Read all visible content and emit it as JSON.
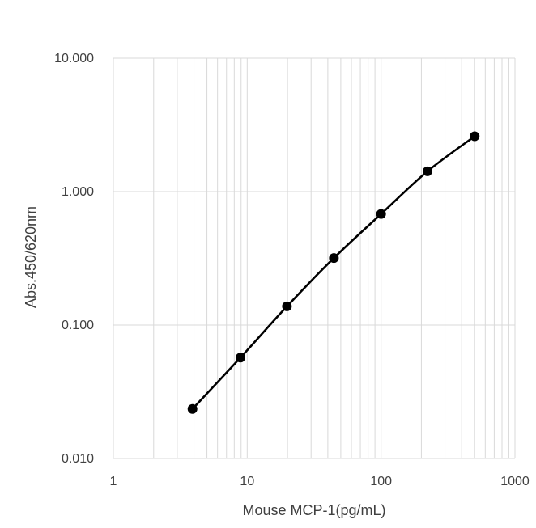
{
  "chart_data": {
    "type": "line",
    "title": "",
    "xlabel": "Mouse MCP-1(pg/mL)",
    "ylabel": "Abs.450/620nm",
    "x_scale": "log",
    "y_scale": "log",
    "xlim": [
      1,
      1000
    ],
    "ylim": [
      0.01,
      10
    ],
    "x_ticks": [
      1,
      10,
      100,
      1000
    ],
    "x_tick_labels": [
      "1",
      "10",
      "100",
      "1000"
    ],
    "y_ticks": [
      0.01,
      0.1,
      1,
      10
    ],
    "y_tick_labels": [
      "0.010",
      "0.100",
      "1.000",
      "10.000"
    ],
    "grid": true,
    "legend": "none",
    "series": [
      {
        "x": [
          3.9,
          8.9,
          19.8,
          44.4,
          100,
          222,
          500
        ],
        "y": [
          0.0235,
          0.057,
          0.138,
          0.318,
          0.68,
          1.42,
          2.6
        ],
        "color": "#000000",
        "marker": "circle",
        "smooth": true
      }
    ]
  }
}
